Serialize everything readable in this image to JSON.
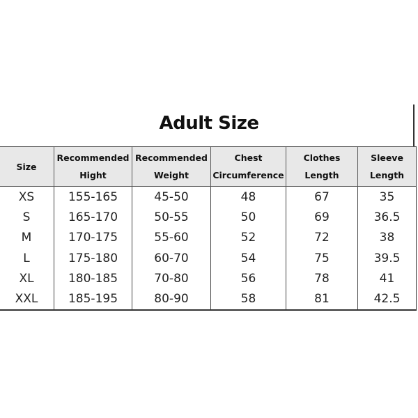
{
  "title": "Adult Size",
  "table": {
    "headers": [
      [
        "Size"
      ],
      [
        "Recommended",
        "Hight"
      ],
      [
        "Recommended",
        "Weight"
      ],
      [
        "Chest",
        "Circumference"
      ],
      [
        "Clothes",
        "Length"
      ],
      [
        "Sleeve",
        "Length"
      ]
    ],
    "rows": [
      [
        "XS",
        "155-165",
        "45-50",
        "48",
        "67",
        "35"
      ],
      [
        "S",
        "165-170",
        "50-55",
        "50",
        "69",
        "36.5"
      ],
      [
        "M",
        "170-175",
        "55-60",
        "52",
        "72",
        "38"
      ],
      [
        "L",
        "175-180",
        "60-70",
        "54",
        "75",
        "39.5"
      ],
      [
        "XL",
        "180-185",
        "70-80",
        "56",
        "78",
        "41"
      ],
      [
        "XXL",
        "185-195",
        "80-90",
        "58",
        "81",
        "42.5"
      ]
    ]
  },
  "colors": {
    "header_bg": "#e8e8e8",
    "border": "#444444"
  }
}
